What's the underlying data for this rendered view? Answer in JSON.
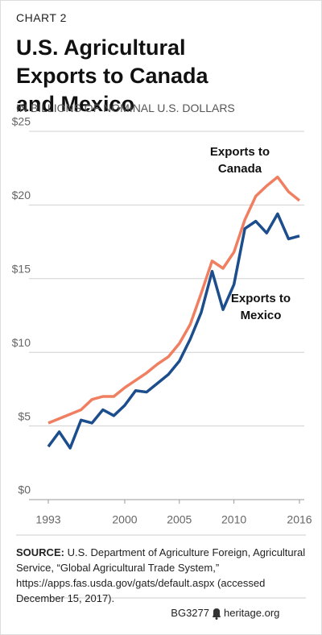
{
  "chart_data": {
    "type": "line",
    "eyebrow": "CHART 2",
    "title": "U.S. Agricultural Exports to Canada and Mexico",
    "subtitle": "IN BILLIONS OF NOMINAL U.S. DOLLARS",
    "x": [
      1993,
      1994,
      1995,
      1996,
      1997,
      1998,
      1999,
      2000,
      2001,
      2002,
      2003,
      2004,
      2005,
      2006,
      2007,
      2008,
      2009,
      2010,
      2011,
      2012,
      2013,
      2014,
      2015,
      2016
    ],
    "series": [
      {
        "name": "Exports to Canada",
        "color": "#f07f61",
        "values": [
          5.2,
          5.5,
          5.8,
          6.1,
          6.8,
          7.0,
          7.0,
          7.6,
          8.1,
          8.6,
          9.2,
          9.7,
          10.6,
          11.9,
          14.0,
          16.2,
          15.7,
          16.8,
          19.0,
          20.6,
          21.3,
          21.9,
          20.9,
          20.3
        ]
      },
      {
        "name": "Exports to Mexico",
        "color": "#1c4d8c",
        "values": [
          3.6,
          4.6,
          3.5,
          5.4,
          5.2,
          6.1,
          5.7,
          6.4,
          7.4,
          7.3,
          7.9,
          8.5,
          9.4,
          10.9,
          12.7,
          15.5,
          12.9,
          14.6,
          18.4,
          18.9,
          18.1,
          19.4,
          17.7,
          17.9
        ]
      }
    ],
    "xlim": [
      1993,
      2016
    ],
    "xticks": [
      1993,
      2000,
      2005,
      2010,
      2016
    ],
    "ylim": [
      0,
      25
    ],
    "yticks": [
      {
        "value": 0,
        "label": "$0"
      },
      {
        "value": 5,
        "label": "$5"
      },
      {
        "value": 10,
        "label": "$10"
      },
      {
        "value": 15,
        "label": "$15"
      },
      {
        "value": 20,
        "label": "$20"
      },
      {
        "value": 25,
        "label": "$25"
      }
    ],
    "grid": true,
    "source_label": "SOURCE:",
    "source": "U.S. Department of Agriculture Foreign, Agricultural Service, “Global Agricultural Trade System,” https://apps.fas.usda.gov/gats/default.aspx (accessed December 15, 2017).",
    "report_id": "BG3277",
    "site": "heritage.org"
  }
}
